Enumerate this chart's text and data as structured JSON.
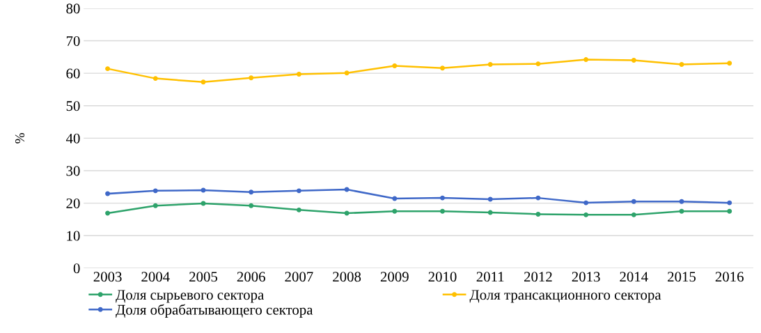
{
  "chart_data": {
    "type": "line",
    "ylabel": "%",
    "categories": [
      "2003",
      "2004",
      "2005",
      "2006",
      "2007",
      "2008",
      "2009",
      "2010",
      "2011",
      "2012",
      "2013",
      "2014",
      "2015",
      "2016"
    ],
    "series": [
      {
        "name": "Доля сырьевого сектора",
        "color": "#2ea36b",
        "values": [
          16.9,
          19.2,
          19.9,
          19.2,
          17.9,
          16.9,
          17.5,
          17.5,
          17.1,
          16.6,
          16.4,
          16.4,
          17.5,
          17.5
        ]
      },
      {
        "name": "Доля обрабатывающего сектора",
        "color": "#3f68c8",
        "values": [
          22.9,
          23.8,
          24.0,
          23.4,
          23.8,
          24.2,
          21.4,
          21.6,
          21.2,
          21.6,
          20.1,
          20.5,
          20.5,
          20.1
        ]
      },
      {
        "name": "Доля трансакционного сектора",
        "color": "#ffc000",
        "values": [
          61.4,
          58.4,
          57.3,
          58.6,
          59.7,
          60.1,
          62.3,
          61.6,
          62.7,
          62.9,
          64.2,
          64.0,
          62.7,
          63.1
        ]
      }
    ],
    "ylim": [
      0,
      80
    ],
    "yticks": [
      0,
      10,
      20,
      30,
      40,
      50,
      60,
      70,
      80
    ],
    "grid": "y",
    "legend": "bottom",
    "marker": "circle",
    "line_style": "solid"
  }
}
